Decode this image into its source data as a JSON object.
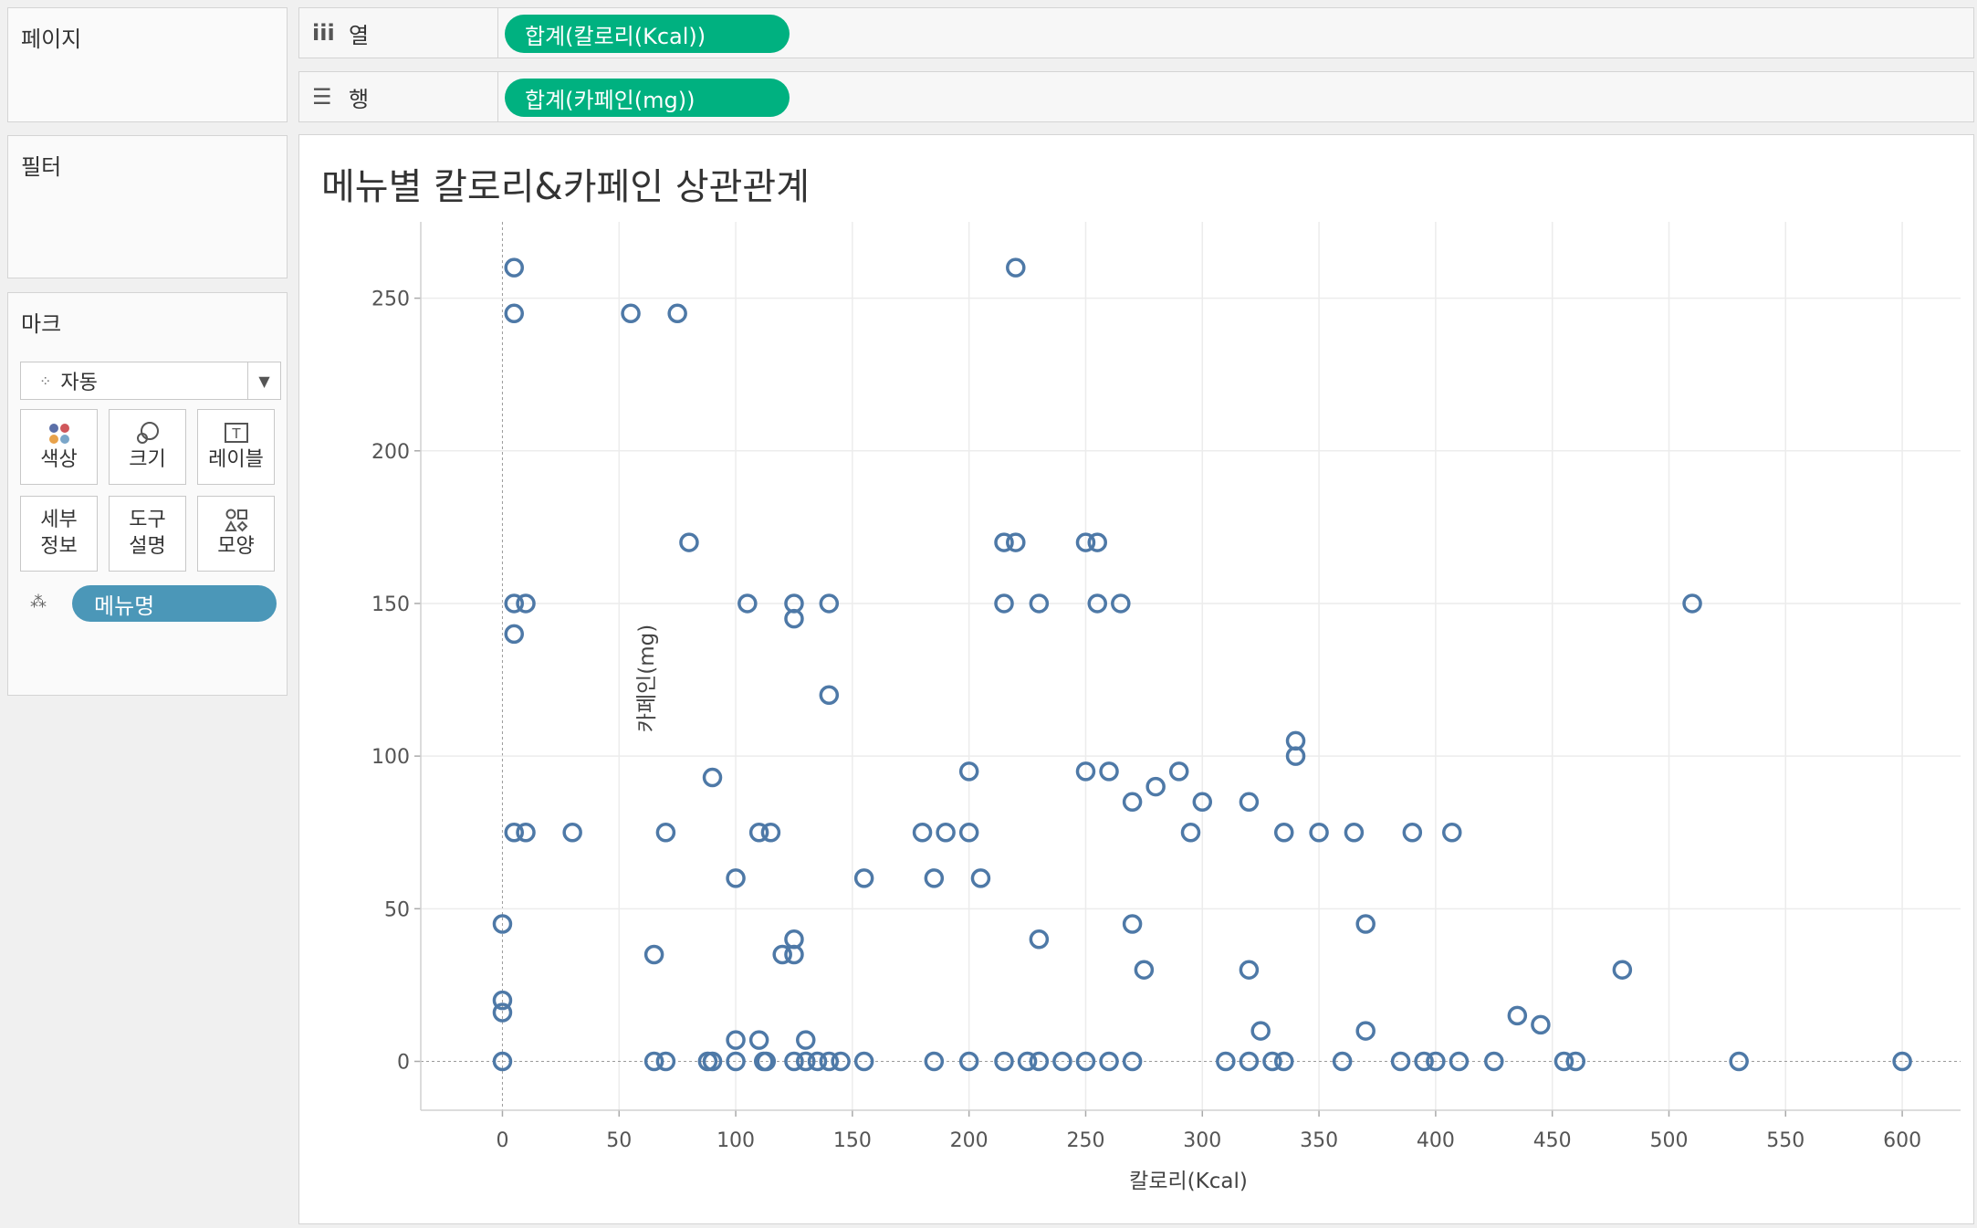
{
  "sidebar": {
    "pages_title": "페이지",
    "filters_title": "필터",
    "marks_title": "마크",
    "mark_type": "자동",
    "mark_buttons": {
      "color": "색상",
      "size": "크기",
      "label": "레이블",
      "detail_1": "세부",
      "detail_2": "정보",
      "tooltip_1": "도구",
      "tooltip_2": "설명",
      "shape": "모양"
    },
    "detail_pill": "메뉴명"
  },
  "shelves": {
    "columns_label": "열",
    "columns_pill": "합계(칼로리(Kcal))",
    "rows_label": "행",
    "rows_pill": "합계(카페인(mg))"
  },
  "colors": {
    "pill_green": "#00b180",
    "pill_blue": "#4b97b8",
    "mark": "#4e79a7"
  },
  "chart_data": {
    "type": "scatter",
    "title": "메뉴별 칼로리&카페인 상관관계",
    "xlabel": "칼로리(Kcal)",
    "ylabel": "카페인(mg)",
    "xlim": [
      -35,
      625
    ],
    "ylim": [
      -16,
      275
    ],
    "xticks": [
      0,
      50,
      100,
      150,
      200,
      250,
      300,
      350,
      400,
      450,
      500,
      550,
      600
    ],
    "yticks": [
      0,
      50,
      100,
      150,
      200,
      250
    ],
    "grid": true,
    "marker": "hollow-circle",
    "points": [
      [
        5,
        260
      ],
      [
        220,
        260
      ],
      [
        5,
        245
      ],
      [
        55,
        245
      ],
      [
        75,
        245
      ],
      [
        80,
        170
      ],
      [
        215,
        170
      ],
      [
        220,
        170
      ],
      [
        250,
        170
      ],
      [
        255,
        170
      ],
      [
        5,
        150
      ],
      [
        10,
        150
      ],
      [
        105,
        150
      ],
      [
        125,
        150
      ],
      [
        140,
        150
      ],
      [
        215,
        150
      ],
      [
        230,
        150
      ],
      [
        255,
        150
      ],
      [
        265,
        150
      ],
      [
        510,
        150
      ],
      [
        125,
        145
      ],
      [
        5,
        140
      ],
      [
        140,
        120
      ],
      [
        340,
        105
      ],
      [
        340,
        100
      ],
      [
        200,
        95
      ],
      [
        250,
        95
      ],
      [
        260,
        95
      ],
      [
        290,
        95
      ],
      [
        90,
        93
      ],
      [
        280,
        90
      ],
      [
        270,
        85
      ],
      [
        300,
        85
      ],
      [
        320,
        85
      ],
      [
        5,
        75
      ],
      [
        10,
        75
      ],
      [
        30,
        75
      ],
      [
        70,
        75
      ],
      [
        110,
        75
      ],
      [
        115,
        75
      ],
      [
        180,
        75
      ],
      [
        190,
        75
      ],
      [
        200,
        75
      ],
      [
        295,
        75
      ],
      [
        335,
        75
      ],
      [
        350,
        75
      ],
      [
        365,
        75
      ],
      [
        390,
        75
      ],
      [
        407,
        75
      ],
      [
        100,
        60
      ],
      [
        155,
        60
      ],
      [
        185,
        60
      ],
      [
        205,
        60
      ],
      [
        0,
        45
      ],
      [
        270,
        45
      ],
      [
        370,
        45
      ],
      [
        125,
        40
      ],
      [
        230,
        40
      ],
      [
        65,
        35
      ],
      [
        120,
        35
      ],
      [
        125,
        35
      ],
      [
        275,
        30
      ],
      [
        320,
        30
      ],
      [
        480,
        30
      ],
      [
        0,
        20
      ],
      [
        0,
        16
      ],
      [
        435,
        15
      ],
      [
        445,
        12
      ],
      [
        325,
        10
      ],
      [
        370,
        10
      ],
      [
        100,
        7
      ],
      [
        110,
        7
      ],
      [
        130,
        7
      ],
      [
        0,
        0
      ],
      [
        65,
        0
      ],
      [
        70,
        0
      ],
      [
        88,
        0
      ],
      [
        90,
        0
      ],
      [
        100,
        0
      ],
      [
        112,
        0
      ],
      [
        113,
        0
      ],
      [
        125,
        0
      ],
      [
        130,
        0
      ],
      [
        135,
        0
      ],
      [
        140,
        0
      ],
      [
        145,
        0
      ],
      [
        155,
        0
      ],
      [
        185,
        0
      ],
      [
        200,
        0
      ],
      [
        215,
        0
      ],
      [
        225,
        0
      ],
      [
        230,
        0
      ],
      [
        240,
        0
      ],
      [
        250,
        0
      ],
      [
        260,
        0
      ],
      [
        270,
        0
      ],
      [
        310,
        0
      ],
      [
        320,
        0
      ],
      [
        330,
        0
      ],
      [
        335,
        0
      ],
      [
        360,
        0
      ],
      [
        385,
        0
      ],
      [
        395,
        0
      ],
      [
        400,
        0
      ],
      [
        410,
        0
      ],
      [
        425,
        0
      ],
      [
        455,
        0
      ],
      [
        460,
        0
      ],
      [
        530,
        0
      ],
      [
        600,
        0
      ]
    ]
  }
}
